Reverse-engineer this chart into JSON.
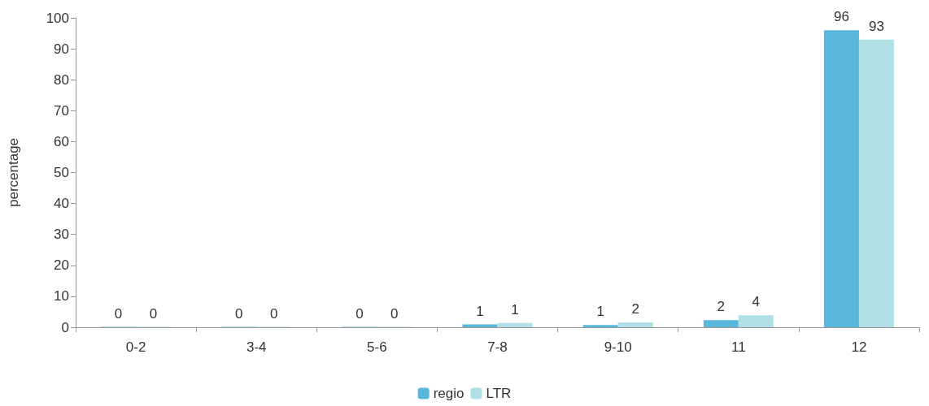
{
  "chart_data": {
    "type": "bar",
    "ylabel": "percentage",
    "categories": [
      "0-2",
      "3-4",
      "5-6",
      "7-8",
      "9-10",
      "11",
      "12"
    ],
    "series": [
      {
        "name": "regio",
        "color": "#5ab7dc",
        "values": [
          0.1,
          0.1,
          0.1,
          0.9,
          0.7,
          2.3,
          96
        ],
        "value_labels": [
          "0",
          "0",
          "0",
          "1",
          "1",
          "2",
          "96"
        ]
      },
      {
        "name": "LTR",
        "color": "#b0dfe5",
        "values": [
          0.1,
          0.1,
          0.1,
          1.4,
          1.6,
          3.9,
          93
        ],
        "value_labels": [
          "0",
          "0",
          "0",
          "1",
          "2",
          "4",
          "93"
        ]
      }
    ],
    "ylim": [
      0,
      100
    ],
    "yticks": [
      0,
      10,
      20,
      30,
      40,
      50,
      60,
      70,
      80,
      90,
      100
    ],
    "grid": false,
    "legend": "bottom"
  }
}
